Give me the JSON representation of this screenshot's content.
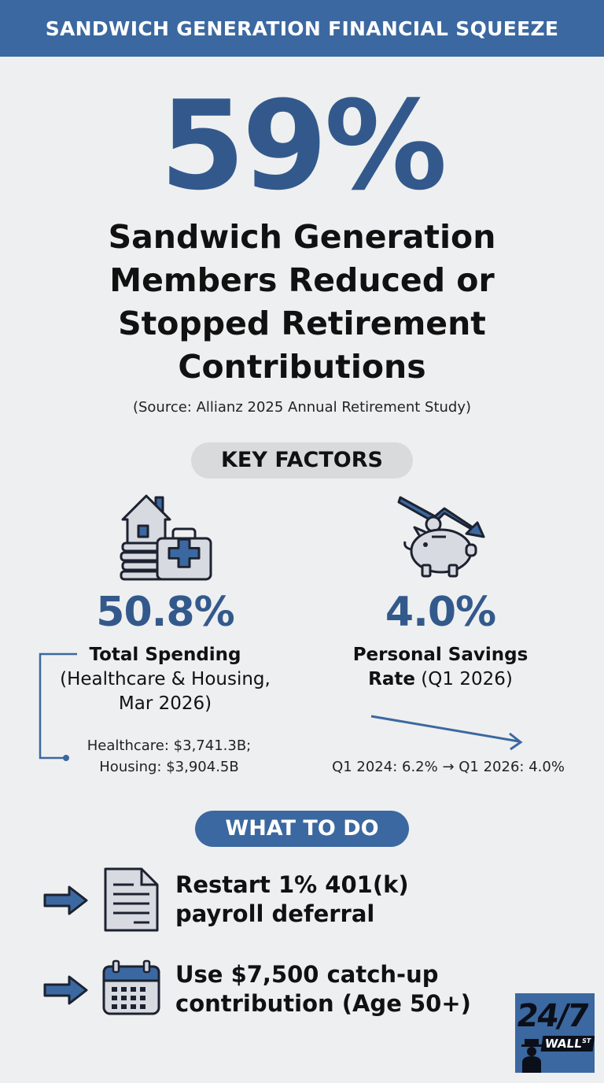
{
  "banner": {
    "title": "SANDWICH GENERATION FINANCIAL SQUEEZE"
  },
  "hero": {
    "stat": "59%",
    "headline_lines": [
      "Sandwich Generation",
      "Members Reduced or",
      "Stopped Retirement",
      "Contributions"
    ],
    "source": "(Source: Allianz 2025 Annual Retirement Study)"
  },
  "key_factors": {
    "label": "KEY FACTORS",
    "spending": {
      "icon": "house-medical-kit-icon",
      "value": "50.8%",
      "title": "Total Spending",
      "subtitle_line1": "(Healthcare & Housing,",
      "subtitle_line2": "Mar 2026)",
      "detail_line1": "Healthcare: $3,741.3B;",
      "detail_line2": "Housing: $3,904.5B"
    },
    "savings": {
      "icon": "piggy-bank-down-arrow-icon",
      "value": "4.0%",
      "title_line1": "Personal Savings",
      "title_line2_bold": "Rate",
      "title_line2_rest": " (Q1 2026)",
      "detail": "Q1 2024: 6.2% → Q1 2026: 4.0%"
    }
  },
  "what_to_do": {
    "label": "WHAT TO DO",
    "actions": [
      {
        "icon": "document-icon",
        "line1": "Restart 1% 401(k)",
        "line2": "payroll deferral"
      },
      {
        "icon": "calendar-icon",
        "line1": "Use $7,500 catch-up",
        "line2": "contribution (Age 50+)"
      }
    ]
  },
  "logo": {
    "number": "24/7",
    "word": "WALL",
    "sup": "ST"
  },
  "colors": {
    "brand_blue": "#3b68a0",
    "stat_blue": "#33598c",
    "background": "#eeeff0"
  }
}
